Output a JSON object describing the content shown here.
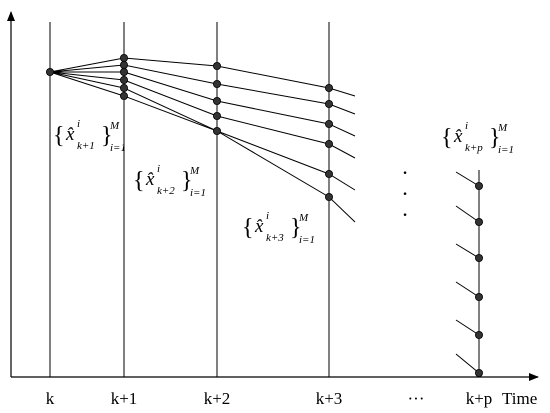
{
  "axis": {
    "time_label": "Time",
    "ticks": [
      "k",
      "k+1",
      "k+2",
      "k+3",
      "···",
      "k+p"
    ]
  },
  "annotations": [
    {
      "var": "x̂",
      "sup": "i",
      "sub": "k+1",
      "upper": "M",
      "lower": "i=1"
    },
    {
      "var": "x̂",
      "sup": "i",
      "sub": "k+2",
      "upper": "M",
      "lower": "i=1"
    },
    {
      "var": "x̂",
      "sup": "i",
      "sub": "k+3",
      "upper": "M",
      "lower": "i=1"
    },
    {
      "var": "x̂",
      "sup": "i",
      "sub": "k+p",
      "upper": "M",
      "lower": "i=1"
    }
  ],
  "ellipsis_mark": "·"
}
